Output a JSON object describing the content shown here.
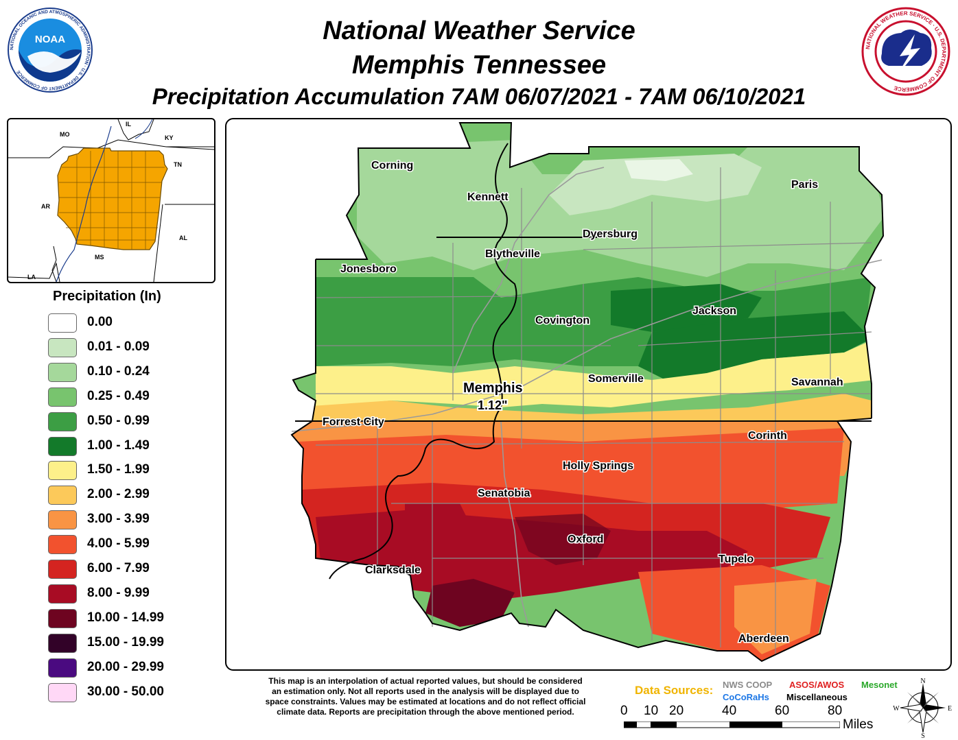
{
  "header": {
    "line1": "National Weather Service",
    "line2": "Memphis Tennessee",
    "line3": "Precipitation Accumulation 7AM 06/07/2021 - 7AM 06/10/2021"
  },
  "logos": {
    "noaa_text": "NOAA",
    "noaa_ring": "NATIONAL OCEANIC AND ATMOSPHERIC ADMINISTRATION · U.S. DEPARTMENT OF COMMERCE",
    "nws_ring": "NATIONAL WEATHER SERVICE · U.S. DEPARTMENT OF COMMERCE"
  },
  "inset_map": {
    "states": [
      "MO",
      "IL",
      "KY",
      "TN",
      "AR",
      "AL",
      "MS",
      "LA"
    ],
    "highlight_color": "#f5a500"
  },
  "legend": {
    "title": "Precipitation (In)",
    "items": [
      {
        "label": "0.00",
        "color": "#ffffff"
      },
      {
        "label": "0.01 - 0.09",
        "color": "#c8e6c0"
      },
      {
        "label": "0.10 - 0.24",
        "color": "#a5d89b"
      },
      {
        "label": "0.25 - 0.49",
        "color": "#78c46e"
      },
      {
        "label": "0.50 - 0.99",
        "color": "#3c9e44"
      },
      {
        "label": "1.00 - 1.49",
        "color": "#137a2a"
      },
      {
        "label": "1.50 - 1.99",
        "color": "#fdf08a"
      },
      {
        "label": "2.00 - 2.99",
        "color": "#fcc95a"
      },
      {
        "label": "3.00 - 3.99",
        "color": "#f99444"
      },
      {
        "label": "4.00 - 5.99",
        "color": "#f2522e"
      },
      {
        "label": "6.00 - 7.99",
        "color": "#d42420"
      },
      {
        "label": "8.00 - 9.99",
        "color": "#a80c24"
      },
      {
        "label": "10.00 - 14.99",
        "color": "#6e0420"
      },
      {
        "label": "15.00 - 19.99",
        "color": "#320228"
      },
      {
        "label": "20.00 - 29.99",
        "color": "#4a0a80"
      },
      {
        "label": "30.00 - 50.00",
        "color": "#ffd8f6"
      }
    ]
  },
  "cities": {
    "corning": "Corning",
    "kennett": "Kennett",
    "paris": "Paris",
    "dyersburg": "Dyersburg",
    "blytheville": "Blytheville",
    "jonesboro": "Jonesboro",
    "covington": "Covington",
    "jackson": "Jackson",
    "somerville": "Somerville",
    "savannah": "Savannah",
    "memphis": "Memphis",
    "memphis_value": "1.12\"",
    "forrest_city": "Forrest City",
    "corinth": "Corinth",
    "holly_springs": "Holly Springs",
    "senatobia": "Senatobia",
    "oxford": "Oxford",
    "clarksdale": "Clarksdale",
    "tupelo": "Tupelo",
    "aberdeen": "Aberdeen"
  },
  "footer": {
    "disclaimer_1": "This map is an interpolation of actual reported values, but should be considered",
    "disclaimer_2": "an estimation only. Not all reports used in the analysis will be displayed due to",
    "disclaimer_3": "space constraints. Values may be estimated at locations and do not reflect official",
    "disclaimer_4": "climate data. Reports are precipitation through the above mentioned period.",
    "data_sources_label": "Data Sources:",
    "sources": [
      {
        "name": "NWS COOP",
        "color": "#8a8a8a"
      },
      {
        "name": "ASOS/AWOS",
        "color": "#e02020"
      },
      {
        "name": "Mesonet",
        "color": "#2aa82a"
      },
      {
        "name": "CoCoRaHs",
        "color": "#1e78e6"
      },
      {
        "name": "Miscellaneous",
        "color": "#000000"
      }
    ]
  },
  "scale_bar": {
    "ticks": [
      "0",
      "10",
      "20",
      "40",
      "60",
      "80"
    ],
    "unit": "Miles"
  },
  "compass": {
    "n": "N",
    "s": "S",
    "e": "E",
    "w": "W"
  }
}
